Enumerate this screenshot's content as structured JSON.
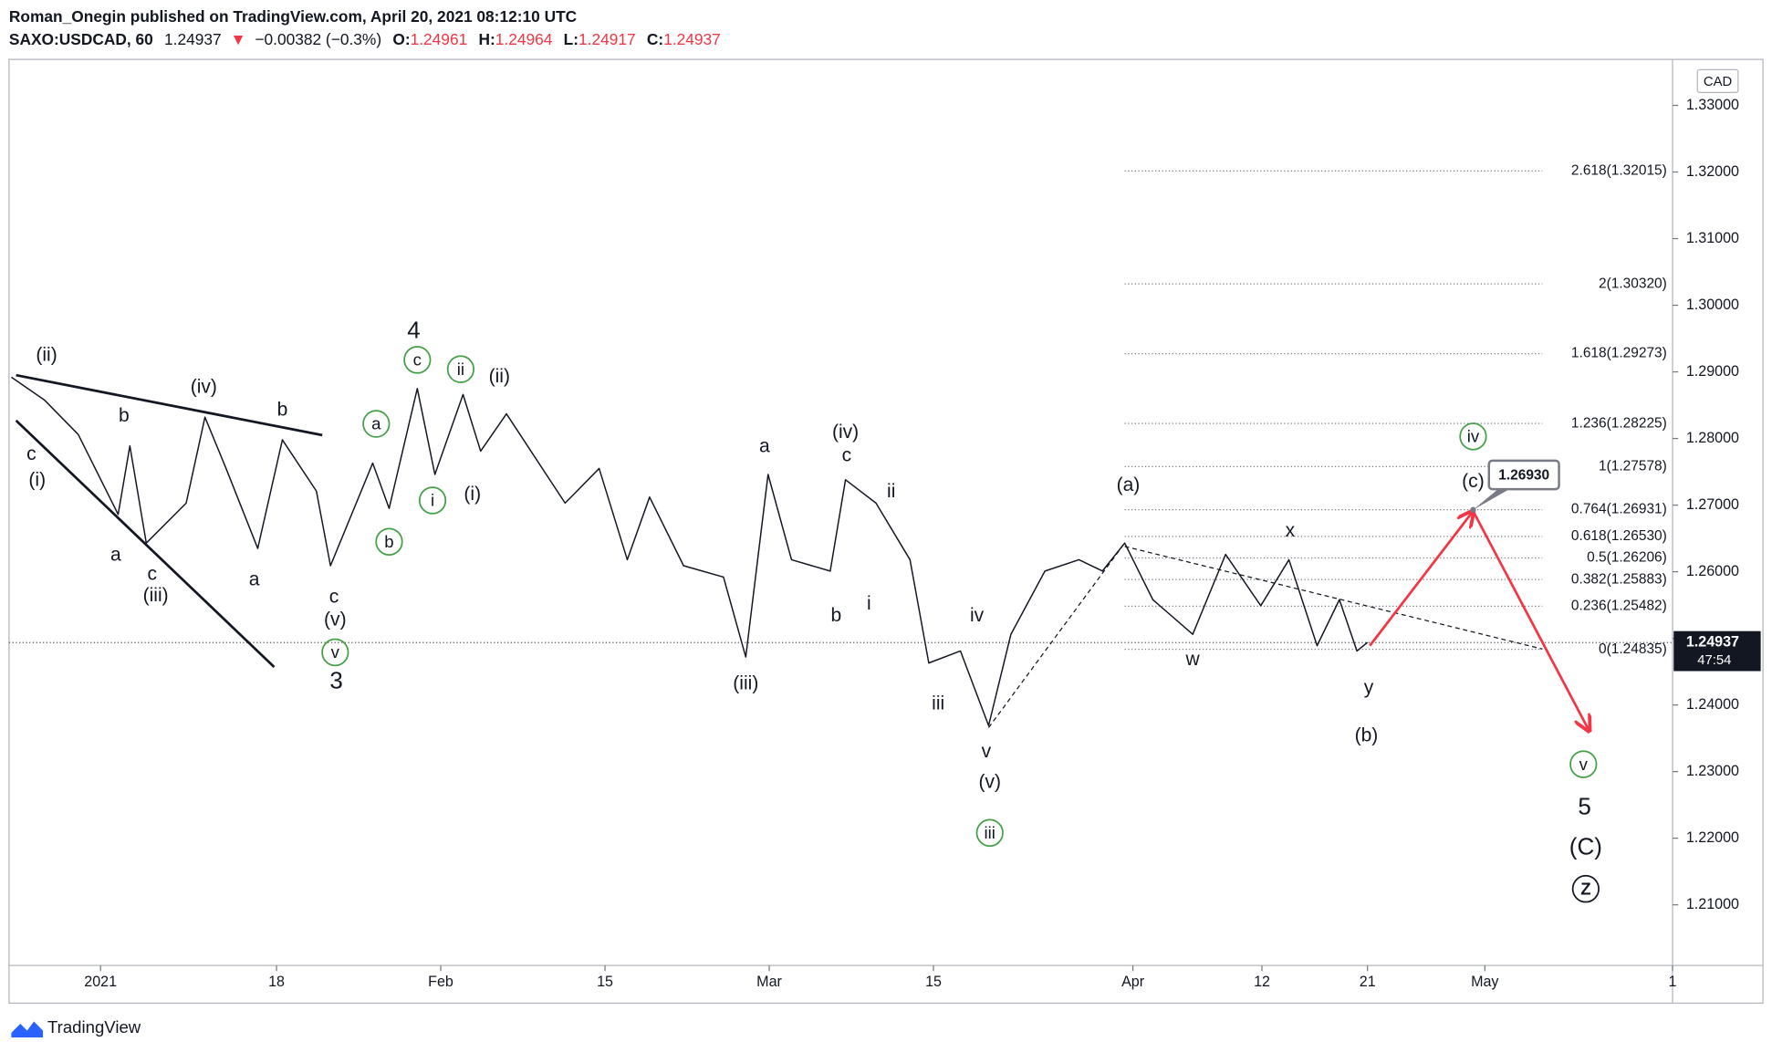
{
  "header": {
    "author_line": "Roman_Onegin published on TradingView.com, April 20, 2021 08:12:10 UTC",
    "symbol": "SAXO:USDCAD, 60",
    "last": "1.24937",
    "arrow": "▼",
    "change": "−0.00382 (−0.3%)",
    "ohlc": [
      {
        "key": "O:",
        "value": "1.24961"
      },
      {
        "key": "H:",
        "value": "1.24964"
      },
      {
        "key": "L:",
        "value": "1.24917"
      },
      {
        "key": "C:",
        "value": "1.24937"
      }
    ]
  },
  "currency": "CAD",
  "footer": "TradingView",
  "chart_data": {
    "type": "line",
    "x": [
      -5.6,
      -2.8,
      0.1,
      3.5,
      4.5,
      5.9,
      9.3,
      10.9,
      12.7,
      15.4,
      17.5,
      20.4,
      21.6,
      25.2,
      26.6,
      29.0,
      30.5,
      32.9,
      34.4,
      36.6,
      41.6,
      44.5,
      46.9,
      48.8,
      51.7,
      55.1,
      57.0,
      58.9,
      60.9,
      64.2,
      65.5,
      68.1,
      71.0,
      72.6,
      75.3,
      77.7,
      79.6,
      82.5,
      85.4,
      87.4,
      89.3,
      91.7,
      95.1,
      97.9,
      100.9,
      103.3,
      105.7,
      107.6,
      109.1,
      110.0
    ],
    "series": [
      {
        "color": "#131722",
        "values": [
          1.2892,
          1.2858,
          1.2806,
          1.2686,
          1.2789,
          1.2643,
          1.2703,
          1.2832,
          1.2755,
          1.2635,
          1.2798,
          1.2721,
          1.2609,
          1.2763,
          1.2695,
          1.2875,
          1.2746,
          1.2866,
          1.2781,
          1.2837,
          1.2703,
          1.2755,
          1.2618,
          1.2712,
          1.2609,
          1.2592,
          1.2472,
          1.2746,
          1.2618,
          1.2601,
          1.2738,
          1.2703,
          1.2618,
          1.2463,
          1.2481,
          1.2369,
          1.2506,
          1.2601,
          1.2618,
          1.2601,
          1.2643,
          1.2558,
          1.2506,
          1.2626,
          1.2549,
          1.2618,
          1.2489,
          1.2558,
          1.2481,
          1.2494
        ]
      }
    ],
    "xlim": [
      -5.8,
      136.0
    ],
    "ylim": [
      1.2009,
      1.3369
    ],
    "xticks": [
      {
        "value": 2,
        "label": "2021"
      },
      {
        "value": 17,
        "label": "18"
      },
      {
        "value": 31,
        "label": "Feb"
      },
      {
        "value": 45,
        "label": "15"
      },
      {
        "value": 59,
        "label": "Mar"
      },
      {
        "value": 73,
        "label": "15"
      },
      {
        "value": 90,
        "label": "Apr"
      },
      {
        "value": 101,
        "label": "12"
      },
      {
        "value": 110,
        "label": "21"
      },
      {
        "value": 120,
        "label": "May"
      },
      {
        "value": 136,
        "label": "1"
      }
    ],
    "yticks": [
      {
        "value": 1.33,
        "label": "1.33000"
      },
      {
        "value": 1.32,
        "label": "1.32000"
      },
      {
        "value": 1.31,
        "label": "1.31000"
      },
      {
        "value": 1.3,
        "label": "1.30000"
      },
      {
        "value": 1.29,
        "label": "1.29000"
      },
      {
        "value": 1.28,
        "label": "1.28000"
      },
      {
        "value": 1.27,
        "label": "1.27000"
      },
      {
        "value": 1.26,
        "label": "1.26000"
      },
      {
        "value": 1.25,
        "label": "1.25000"
      },
      {
        "value": 1.24,
        "label": "1.24000"
      },
      {
        "value": 1.23,
        "label": "1.23000"
      },
      {
        "value": 1.22,
        "label": "1.22000"
      },
      {
        "value": 1.21,
        "label": "1.21000"
      }
    ],
    "last_price": {
      "value": 1.24937,
      "label": "1.24937",
      "countdown": "47:54"
    },
    "fib_x": [
      89.3,
      124.9
    ],
    "fib_levels": [
      {
        "value": 1.32015,
        "label": "2.618(1.32015)"
      },
      {
        "value": 1.3032,
        "label": "2(1.30320)"
      },
      {
        "value": 1.29273,
        "label": "1.618(1.29273)"
      },
      {
        "value": 1.28225,
        "label": "1.236(1.28225)"
      },
      {
        "value": 1.27578,
        "label": "1(1.27578)"
      },
      {
        "value": 1.26931,
        "label": "0.764(1.26931)"
      },
      {
        "value": 1.2653,
        "label": "0.618(1.26530)"
      },
      {
        "value": 1.26206,
        "label": "0.5(1.26206)"
      },
      {
        "value": 1.25883,
        "label": "0.382(1.25883)"
      },
      {
        "value": 1.25482,
        "label": "0.236(1.25482)"
      },
      {
        "value": 1.24835,
        "label": "0(1.24835)"
      }
    ],
    "callout": {
      "x": 119.0,
      "value": 1.2693,
      "label": "1.26930"
    },
    "lines": [
      {
        "color": "#131722",
        "dashed": false,
        "arrow": false,
        "x": [
          -5.2,
          20.9
        ],
        "y": [
          1.2895,
          1.2805
        ]
      },
      {
        "color": "#131722",
        "dashed": false,
        "arrow": false,
        "x": [
          -5.2,
          16.8
        ],
        "y": [
          1.2827,
          1.2457
        ]
      },
      {
        "color": "#131722",
        "dashed": true,
        "arrow": false,
        "x": [
          77.7,
          89.3
        ],
        "y": [
          1.2366,
          1.2643
        ]
      },
      {
        "color": "#131722",
        "dashed": true,
        "arrow": false,
        "x": [
          89.3,
          124.9
        ],
        "y": [
          1.2638,
          1.2484
        ]
      },
      {
        "color": "#f23645",
        "dashed": false,
        "arrow": true,
        "x": [
          110.2,
          119.0
        ],
        "y": [
          1.2489,
          1.2691
        ]
      },
      {
        "color": "#f23645",
        "dashed": false,
        "arrow": true,
        "x": [
          119.0,
          128.9
        ],
        "y": [
          1.2691,
          1.2361
        ]
      }
    ],
    "annotations": [
      {
        "text": "(ii)",
        "color": "#ef8a85",
        "circled": false,
        "x": -2.6,
        "y": 1.2926
      },
      {
        "text": "c",
        "color": "#131722",
        "circled": false,
        "x": -3.9,
        "y": 1.2777
      },
      {
        "text": "(i)",
        "color": "#ef8a85",
        "circled": false,
        "x": -3.4,
        "y": 1.2738
      },
      {
        "text": "b",
        "color": "#131722",
        "circled": false,
        "x": 4.0,
        "y": 1.2835
      },
      {
        "text": "(iv)",
        "color": "#ef8a85",
        "circled": false,
        "x": 10.8,
        "y": 1.2878
      },
      {
        "text": "b",
        "color": "#131722",
        "circled": false,
        "x": 17.5,
        "y": 1.2844
      },
      {
        "text": "a",
        "color": "#131722",
        "circled": false,
        "x": 3.3,
        "y": 1.2626
      },
      {
        "text": "c",
        "color": "#131722",
        "circled": false,
        "x": 6.4,
        "y": 1.2597
      },
      {
        "text": "(iii)",
        "color": "#ef8a85",
        "circled": false,
        "x": 6.7,
        "y": 1.2565
      },
      {
        "text": "a",
        "color": "#131722",
        "circled": false,
        "x": 15.1,
        "y": 1.2589
      },
      {
        "text": "c",
        "color": "#131722",
        "circled": false,
        "x": 21.9,
        "y": 1.2563
      },
      {
        "text": "(v)",
        "color": "#ef8a85",
        "circled": false,
        "x": 22.0,
        "y": 1.2529
      },
      {
        "text": "v",
        "color": "#43a047",
        "circled": true,
        "x": 22.0,
        "y": 1.2479
      },
      {
        "text": "3",
        "color": "#2196f3",
        "circled": false,
        "x": 22.1,
        "y": 1.2436
      },
      {
        "text": "4",
        "color": "#2196f3",
        "circled": false,
        "x": 28.7,
        "y": 1.2962
      },
      {
        "text": "c",
        "color": "#43a047",
        "circled": true,
        "x": 29.0,
        "y": 1.2918
      },
      {
        "text": "ii",
        "color": "#43a047",
        "circled": true,
        "x": 32.7,
        "y": 1.2904
      },
      {
        "text": "(ii)",
        "color": "#ef8a85",
        "circled": false,
        "x": 36.0,
        "y": 1.2894
      },
      {
        "text": "a",
        "color": "#43a047",
        "circled": true,
        "x": 25.5,
        "y": 1.2822
      },
      {
        "text": "i",
        "color": "#43a047",
        "circled": true,
        "x": 30.3,
        "y": 1.2707
      },
      {
        "text": "(i)",
        "color": "#ef8a85",
        "circled": false,
        "x": 33.7,
        "y": 1.2717
      },
      {
        "text": "b",
        "color": "#43a047",
        "circled": true,
        "x": 26.6,
        "y": 1.2645
      },
      {
        "text": "a",
        "color": "#131722",
        "circled": false,
        "x": 58.6,
        "y": 1.2789
      },
      {
        "text": "(iv)",
        "color": "#ef8a85",
        "circled": false,
        "x": 65.5,
        "y": 1.281
      },
      {
        "text": "c",
        "color": "#131722",
        "circled": false,
        "x": 65.6,
        "y": 1.2775
      },
      {
        "text": "ii",
        "color": "#131722",
        "circled": false,
        "x": 69.4,
        "y": 1.2721
      },
      {
        "text": "i",
        "color": "#131722",
        "circled": false,
        "x": 67.5,
        "y": 1.2553
      },
      {
        "text": "b",
        "color": "#131722",
        "circled": false,
        "x": 64.7,
        "y": 1.2535
      },
      {
        "text": "(iii)",
        "color": "#ef8a85",
        "circled": false,
        "x": 57.0,
        "y": 1.2433
      },
      {
        "text": "iv",
        "color": "#131722",
        "circled": false,
        "x": 76.7,
        "y": 1.2535
      },
      {
        "text": "iii",
        "color": "#131722",
        "circled": false,
        "x": 73.4,
        "y": 1.2403
      },
      {
        "text": "v",
        "color": "#131722",
        "circled": false,
        "x": 77.5,
        "y": 1.2331
      },
      {
        "text": "(v)",
        "color": "#ef8a85",
        "circled": false,
        "x": 77.8,
        "y": 1.2285
      },
      {
        "text": "iii",
        "color": "#43a047",
        "circled": true,
        "x": 77.8,
        "y": 1.2208
      },
      {
        "text": "(a)",
        "color": "#f6b8b8",
        "circled": false,
        "x": 89.6,
        "y": 1.2731
      },
      {
        "text": "x",
        "color": "#131722",
        "circled": false,
        "x": 103.4,
        "y": 1.2662
      },
      {
        "text": "w",
        "color": "#131722",
        "circled": false,
        "x": 95.1,
        "y": 1.2469
      },
      {
        "text": "y",
        "color": "#131722",
        "circled": false,
        "x": 110.1,
        "y": 1.2427
      },
      {
        "text": "(b)",
        "color": "#f6b8b8",
        "circled": false,
        "x": 109.9,
        "y": 1.2355
      },
      {
        "text": "iv",
        "color": "#43a047",
        "circled": true,
        "x": 119.0,
        "y": 1.2803
      },
      {
        "text": "(c)",
        "color": "#f6b8b8",
        "circled": false,
        "x": 119.0,
        "y": 1.2736
      },
      {
        "text": "v",
        "color": "#43a047",
        "circled": true,
        "x": 128.4,
        "y": 1.2311
      },
      {
        "text": "5",
        "color": "#2196f3",
        "circled": false,
        "x": 128.5,
        "y": 1.2247
      },
      {
        "text": "(C)",
        "color": "#f23645",
        "circled": false,
        "x": 128.6,
        "y": 1.2187
      },
      {
        "text": "Z",
        "color": "#131722",
        "circled": true,
        "x": 128.6,
        "y": 1.2124
      }
    ]
  }
}
